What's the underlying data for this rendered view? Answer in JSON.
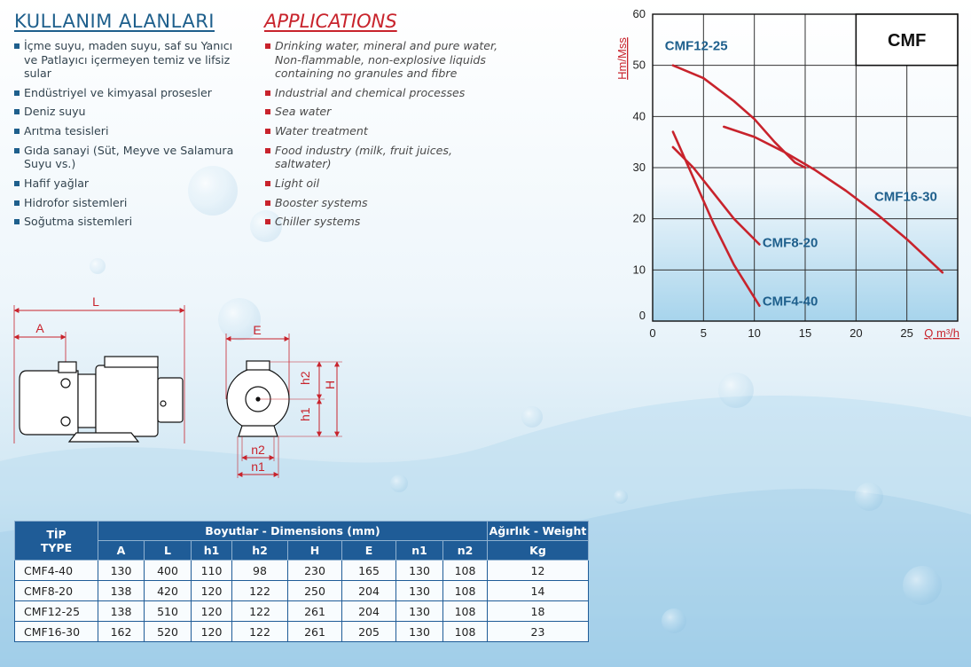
{
  "headings": {
    "tr": "KULLANIM ALANLARI",
    "en": "APPLICATIONS"
  },
  "applications_tr": [
    "İçme suyu, maden suyu, saf su Yanıcı ve Patlayıcı içermeyen temiz ve lifsiz sular",
    "Endüstriyel ve kimyasal prosesler",
    "Deniz suyu",
    "Arıtma tesisleri",
    "Gıda sanayi (Süt, Meyve ve Salamura Suyu vs.)",
    "Hafif yağlar",
    "Hidrofor sistemleri",
    "Soğutma sistemleri"
  ],
  "applications_en": [
    "Drinking water, mineral and pure water, Non-flammable, non-explosive liquids containing no granules and fibre",
    "Industrial and chemical processes",
    "Sea water",
    "Water treatment",
    "Food industry (milk, fruit juices, saltwater)",
    "Light oil",
    "Booster systems",
    "Chiller systems"
  ],
  "drawing_labels": {
    "L": "L",
    "A": "A",
    "E": "E",
    "h1": "h1",
    "h2": "h2",
    "H": "H",
    "n1": "n1",
    "n2": "n2"
  },
  "chart_data": {
    "type": "line",
    "title": "CMF",
    "xlabel": "Q m³/h",
    "ylabel": "Hm/Mss",
    "xlim": [
      0,
      30
    ],
    "ylim": [
      0,
      60
    ],
    "xticks": [
      0,
      5,
      10,
      15,
      20,
      25
    ],
    "yticks": [
      0,
      10,
      20,
      30,
      40,
      50,
      60
    ],
    "grid": true,
    "colors": {
      "curve": "#c8232c",
      "label": "#1e5f8c",
      "grid": "#333333"
    },
    "series": [
      {
        "name": "CMF12-25",
        "x": [
          2,
          5,
          8,
          10,
          12,
          14,
          15
        ],
        "y": [
          50,
          47.5,
          43,
          39.5,
          35,
          31,
          30
        ]
      },
      {
        "name": "CMF16-30",
        "x": [
          7,
          10,
          13,
          16,
          19,
          22,
          25,
          28.5
        ],
        "y": [
          38,
          36,
          33,
          29.5,
          25.5,
          21,
          16,
          9.5
        ]
      },
      {
        "name": "CMF8-20",
        "x": [
          2,
          4,
          6,
          8,
          10.5
        ],
        "y": [
          34,
          30,
          25,
          20,
          15
        ]
      },
      {
        "name": "CMF4-40",
        "x": [
          2,
          4,
          6,
          8,
          10.5
        ],
        "y": [
          37,
          28,
          19,
          11,
          3
        ]
      }
    ],
    "annotations": [
      {
        "text": "CMF12-25",
        "x": 1.2,
        "y": 53
      },
      {
        "text": "CMF16-30",
        "x": 21.8,
        "y": 23.5
      },
      {
        "text": "CMF8-20",
        "x": 10.8,
        "y": 14.5
      },
      {
        "text": "CMF4-40",
        "x": 10.8,
        "y": 3
      }
    ]
  },
  "table": {
    "type_header": [
      "TİP",
      "TYPE"
    ],
    "dims_header": "Boyutlar -  Dimensions (mm)",
    "weight_header": "Ağırlık - Weight",
    "columns": [
      "A",
      "L",
      "h1",
      "h2",
      "H",
      "E",
      "n1",
      "n2"
    ],
    "weight_unit": "Kg",
    "rows": [
      {
        "type": "CMF4-40",
        "dims": [
          "130",
          "400",
          "110",
          "98",
          "230",
          "165",
          "130",
          "108"
        ],
        "weight": "12"
      },
      {
        "type": "CMF8-20",
        "dims": [
          "138",
          "420",
          "120",
          "122",
          "250",
          "204",
          "130",
          "108"
        ],
        "weight": "14"
      },
      {
        "type": "CMF12-25",
        "dims": [
          "138",
          "510",
          "120",
          "122",
          "261",
          "204",
          "130",
          "108"
        ],
        "weight": "18"
      },
      {
        "type": "CMF16-30",
        "dims": [
          "162",
          "520",
          "120",
          "122",
          "261",
          "205",
          "130",
          "108"
        ],
        "weight": "23"
      }
    ]
  }
}
